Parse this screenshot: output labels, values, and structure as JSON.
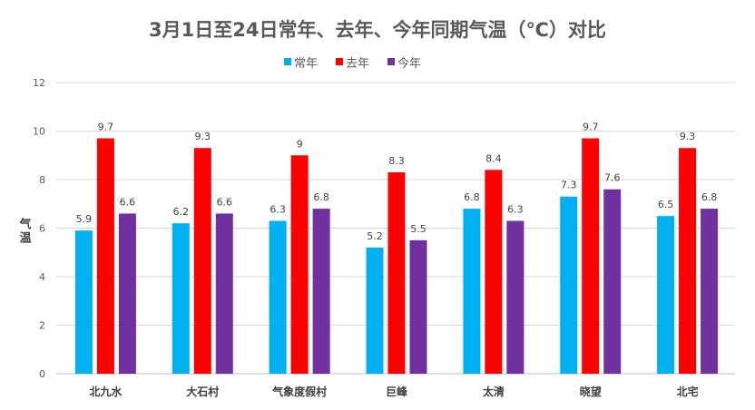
{
  "chart_data": {
    "type": "bar",
    "title": "3月1日至24日常年、去年、今年同期气温（℃）对比",
    "xlabel": "",
    "ylabel": "气温",
    "ylim": [
      0,
      12
    ],
    "yticks": [
      "0",
      "2",
      "4",
      "6",
      "8",
      "10",
      "12"
    ],
    "grid": true,
    "legend_position": "top-center",
    "categories": [
      "北九水",
      "大石村",
      "气象度假村",
      "巨峰",
      "太清",
      "晓望",
      "北宅"
    ],
    "series": [
      {
        "name": "常年",
        "color": "#00B0F0",
        "values": [
          5.9,
          6.2,
          6.3,
          5.2,
          6.8,
          7.3,
          6.5
        ]
      },
      {
        "name": "去年",
        "color": "#FF0000",
        "values": [
          9.7,
          9.3,
          9,
          8.3,
          8.4,
          9.7,
          9.3
        ]
      },
      {
        "name": "今年",
        "color": "#7030A0",
        "values": [
          6.6,
          6.6,
          6.8,
          5.5,
          6.3,
          7.6,
          6.8
        ]
      }
    ]
  }
}
